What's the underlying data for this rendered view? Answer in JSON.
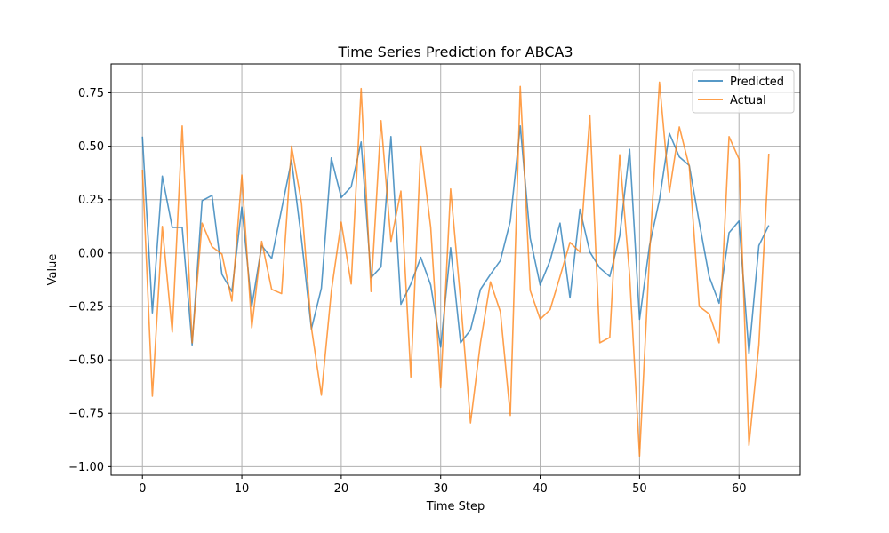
{
  "chart_data": {
    "type": "line",
    "title": "Time Series Prediction for ABCA3",
    "xlabel": "Time Step",
    "ylabel": "Value",
    "xlim": [
      -3.15,
      66.15
    ],
    "ylim": [
      -1.04,
      0.885
    ],
    "xticks": [
      0,
      10,
      20,
      30,
      40,
      50,
      60
    ],
    "yticks": [
      -1.0,
      -0.75,
      -0.5,
      -0.25,
      0.0,
      0.25,
      0.5,
      0.75
    ],
    "ytick_labels": [
      "−1.00",
      "−0.75",
      "−0.50",
      "−0.25",
      "0.00",
      "0.25",
      "0.50",
      "0.75"
    ],
    "grid": true,
    "legend_position": "top-right",
    "x": [
      0,
      1,
      2,
      3,
      4,
      5,
      6,
      7,
      8,
      9,
      10,
      11,
      12,
      13,
      14,
      15,
      16,
      17,
      18,
      19,
      20,
      21,
      22,
      23,
      24,
      25,
      26,
      27,
      28,
      29,
      30,
      31,
      32,
      33,
      34,
      35,
      36,
      37,
      38,
      39,
      40,
      41,
      42,
      43,
      44,
      45,
      46,
      47,
      48,
      49,
      50,
      51,
      52,
      53,
      54,
      55,
      56,
      57,
      58,
      59,
      60,
      61,
      62,
      63
    ],
    "series": [
      {
        "name": "Predicted",
        "color": "#1f77b4",
        "values": [
          0.545,
          -0.28,
          0.36,
          0.12,
          0.12,
          -0.43,
          0.245,
          0.27,
          -0.1,
          -0.18,
          0.215,
          -0.25,
          0.035,
          -0.025,
          0.205,
          0.435,
          0.065,
          -0.355,
          -0.165,
          0.445,
          0.26,
          0.31,
          0.52,
          -0.115,
          -0.065,
          0.545,
          -0.24,
          -0.145,
          -0.02,
          -0.15,
          -0.44,
          0.025,
          -0.42,
          -0.36,
          -0.17,
          -0.1,
          -0.035,
          0.15,
          0.595,
          0.07,
          -0.15,
          -0.035,
          0.14,
          -0.21,
          0.205,
          0.005,
          -0.07,
          -0.11,
          0.08,
          0.485,
          -0.31,
          0.035,
          0.25,
          0.56,
          0.45,
          0.41,
          0.145,
          -0.11,
          -0.235,
          0.095,
          0.15,
          -0.47,
          0.035,
          0.13
        ]
      },
      {
        "name": "Actual",
        "color": "#ff7f0e",
        "values": [
          0.39,
          -0.67,
          0.125,
          -0.37,
          0.595,
          -0.42,
          0.14,
          0.03,
          -0.005,
          -0.225,
          0.365,
          -0.35,
          0.055,
          -0.17,
          -0.19,
          0.5,
          0.235,
          -0.35,
          -0.665,
          -0.18,
          0.145,
          -0.145,
          0.77,
          -0.18,
          0.62,
          0.055,
          0.29,
          -0.58,
          0.5,
          0.12,
          -0.63,
          0.3,
          -0.22,
          -0.795,
          -0.42,
          -0.135,
          -0.275,
          -0.76,
          0.78,
          -0.175,
          -0.31,
          -0.265,
          -0.11,
          0.05,
          0.005,
          0.645,
          -0.42,
          -0.395,
          0.46,
          -0.105,
          -0.95,
          -0.01,
          0.8,
          0.285,
          0.59,
          0.405,
          -0.25,
          -0.285,
          -0.42,
          0.545,
          0.44,
          -0.9,
          -0.43,
          0.465
        ]
      }
    ]
  }
}
